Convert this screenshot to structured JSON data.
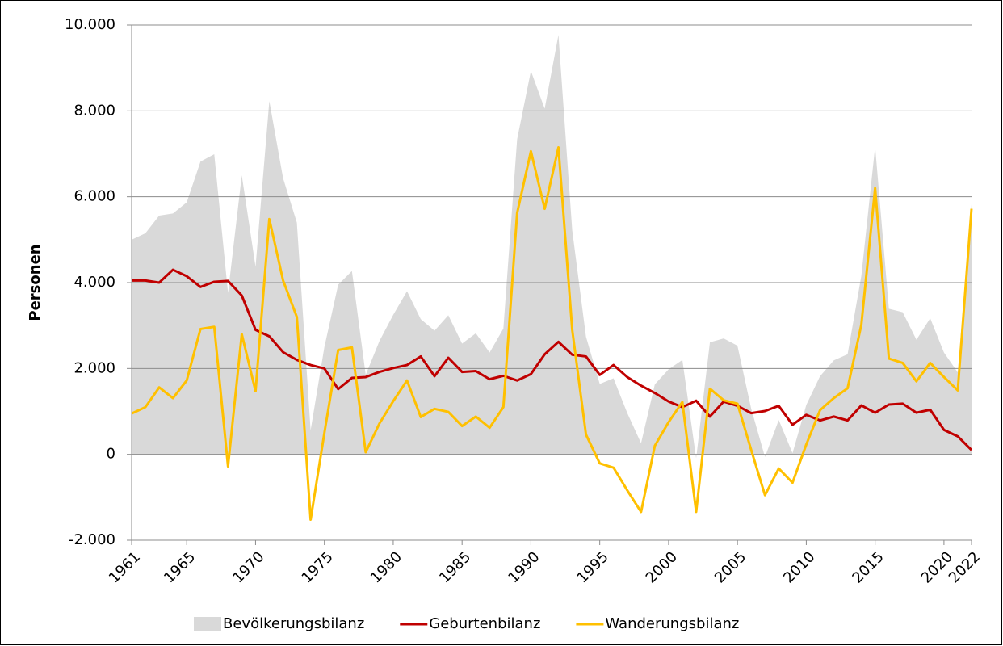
{
  "chart_data": {
    "type": "line",
    "y_label": "Personen",
    "x": [
      1961,
      1962,
      1963,
      1964,
      1965,
      1966,
      1967,
      1968,
      1969,
      1970,
      1971,
      1972,
      1973,
      1974,
      1975,
      1976,
      1977,
      1978,
      1979,
      1980,
      1981,
      1982,
      1983,
      1984,
      1985,
      1986,
      1987,
      1988,
      1989,
      1990,
      1991,
      1992,
      1993,
      1994,
      1995,
      1996,
      1997,
      1998,
      1999,
      2000,
      2001,
      2002,
      2003,
      2004,
      2005,
      2006,
      2007,
      2008,
      2009,
      2010,
      2011,
      2012,
      2013,
      2014,
      2015,
      2016,
      2017,
      2018,
      2019,
      2020,
      2021,
      2022
    ],
    "xlim": [
      1961,
      2022
    ],
    "xticks": [
      1961,
      1965,
      1970,
      1975,
      1980,
      1985,
      1990,
      1995,
      2000,
      2005,
      2010,
      2015,
      2020,
      2022
    ],
    "ylim": [
      -2000,
      10000
    ],
    "yticks": [
      {
        "value": -2000,
        "label": "-2.000"
      },
      0,
      {
        "value": 2000,
        "label": "2.000"
      },
      {
        "value": 4000,
        "label": "4.000"
      },
      {
        "value": 6000,
        "label": "6.000"
      },
      {
        "value": 8000,
        "label": "8.000"
      },
      {
        "value": 10000,
        "label": "10.000"
      }
    ],
    "grid": true,
    "legend": "bottom",
    "series": [
      {
        "name": "Bevölkerungsbilanz",
        "kind": "area",
        "color": "#d9d9d9",
        "values": [
          5000,
          5150,
          5560,
          5610,
          5870,
          6820,
          6990,
          3760,
          6500,
          4370,
          8230,
          6430,
          5400,
          560,
          2500,
          3950,
          4270,
          1850,
          2640,
          3250,
          3800,
          3150,
          2880,
          3240,
          2580,
          2820,
          2370,
          2930,
          7340,
          8930,
          8050,
          9770,
          5220,
          2740,
          1640,
          1770,
          960,
          260,
          1630,
          1980,
          2200,
          -90,
          2610,
          2700,
          2530,
          1060,
          -60,
          800,
          30,
          1150,
          1820,
          2190,
          2330,
          4160,
          7170,
          3390,
          3310,
          2670,
          3170,
          2370,
          1910,
          5820
        ]
      },
      {
        "name": "Geburtenbilanz",
        "kind": "line",
        "color": "#c00000",
        "values": [
          4050,
          4050,
          4000,
          4300,
          4150,
          3900,
          4020,
          4040,
          3700,
          2900,
          2750,
          2380,
          2200,
          2080,
          2000,
          1520,
          1780,
          1800,
          1920,
          2010,
          2080,
          2280,
          1820,
          2250,
          1920,
          1940,
          1750,
          1830,
          1720,
          1870,
          2330,
          2620,
          2320,
          2280,
          1850,
          2080,
          1800,
          1600,
          1430,
          1230,
          1100,
          1250,
          880,
          1230,
          1130,
          960,
          1010,
          1130,
          690,
          920,
          790,
          880,
          790,
          1140,
          970,
          1160,
          1180,
          970,
          1040,
          570,
          420,
          100
        ]
      },
      {
        "name": "Wanderungsbilanz",
        "kind": "line",
        "color": "#ffc000",
        "values": [
          950,
          1100,
          1560,
          1310,
          1720,
          2920,
          2970,
          -280,
          2800,
          1470,
          5480,
          4050,
          3200,
          -1520,
          500,
          2430,
          2490,
          50,
          720,
          1240,
          1720,
          870,
          1060,
          990,
          660,
          880,
          620,
          1100,
          5620,
          7060,
          5720,
          7150,
          2900,
          460,
          -210,
          -310,
          -840,
          -1340,
          200,
          750,
          1220,
          -1340,
          1530,
          1260,
          1180,
          100,
          -950,
          -330,
          -660,
          230,
          1030,
          1310,
          1540,
          3020,
          6200,
          2230,
          2130,
          1700,
          2130,
          1800,
          1490,
          5720
        ]
      }
    ]
  }
}
